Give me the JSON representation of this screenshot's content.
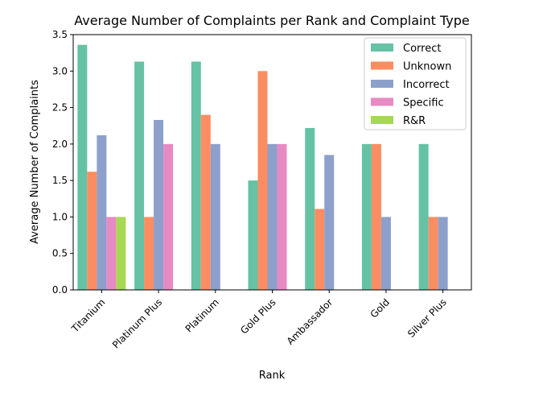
{
  "chart_data": {
    "type": "bar",
    "title": "Average Number of Complaints per Rank and Complaint Type",
    "xlabel": "Rank",
    "ylabel": "Average Number of Complaints",
    "ylim": [
      0,
      3.5
    ],
    "yticks": [
      "0.0",
      "0.5",
      "1.0",
      "1.5",
      "2.0",
      "2.5",
      "3.0",
      "3.5"
    ],
    "grid": false,
    "legend_position": "top-right",
    "categories": [
      "Titanium",
      "Platinum Plus",
      "Platinum",
      "Gold Plus",
      "Ambassador",
      "Gold",
      "Silver Plus"
    ],
    "series": [
      {
        "name": "Correct",
        "color": "#66c2a5",
        "values": [
          3.36,
          3.13,
          3.13,
          1.5,
          2.22,
          2.0,
          2.0
        ]
      },
      {
        "name": "Unknown",
        "color": "#fc8d62",
        "values": [
          1.62,
          1.0,
          2.4,
          3.0,
          1.11,
          2.0,
          1.0
        ]
      },
      {
        "name": "Incorrect",
        "color": "#8da0cb",
        "values": [
          2.12,
          2.33,
          2.0,
          2.0,
          1.85,
          1.0,
          1.0
        ]
      },
      {
        "name": "Specific",
        "color": "#e78ac3",
        "values": [
          1.0,
          2.0,
          null,
          2.0,
          null,
          null,
          null
        ]
      },
      {
        "name": "R&R",
        "color": "#a6d854",
        "values": [
          1.0,
          null,
          null,
          null,
          null,
          null,
          null
        ]
      }
    ]
  }
}
